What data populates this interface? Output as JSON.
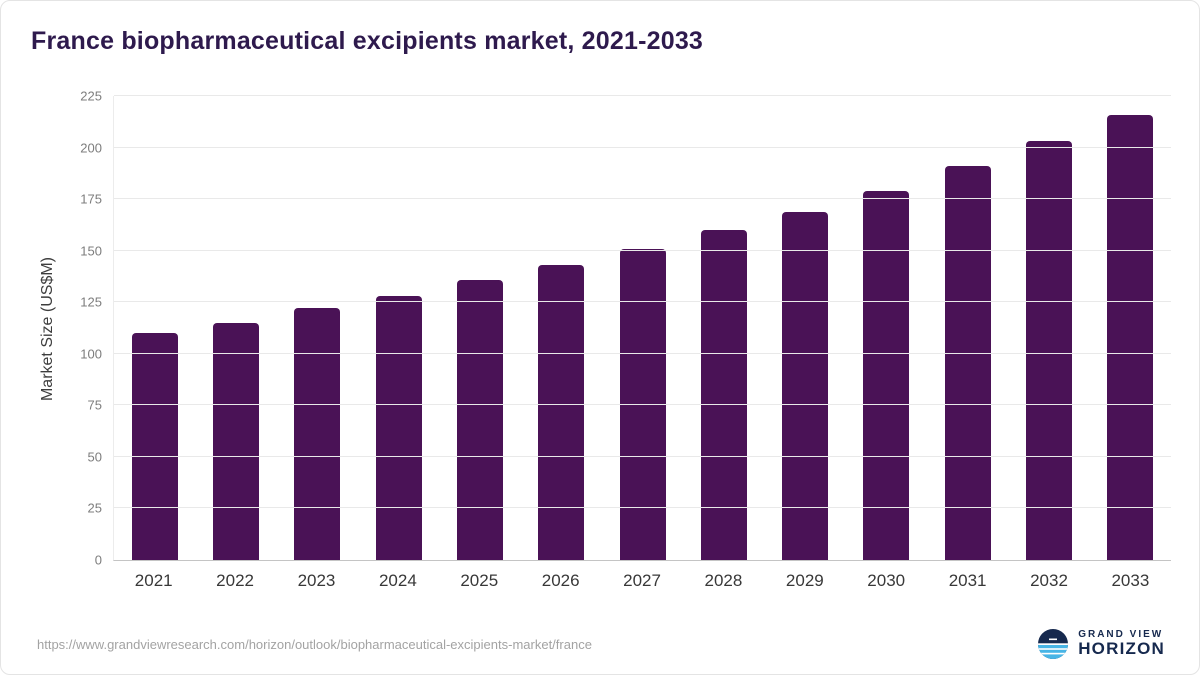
{
  "header": {
    "title": "France biopharmaceutical excipients market, 2021-2033"
  },
  "chart_data": {
    "type": "bar",
    "title": "France biopharmaceutical excipients market, 2021-2033",
    "categories": [
      "2021",
      "2022",
      "2023",
      "2024",
      "2025",
      "2026",
      "2027",
      "2028",
      "2029",
      "2030",
      "2031",
      "2032",
      "2033"
    ],
    "values": [
      110,
      115,
      122,
      128,
      136,
      143,
      151,
      160,
      169,
      179,
      191,
      203,
      216
    ],
    "xlabel": "",
    "ylabel": "Market Size (US$M)",
    "ylim": [
      0,
      225
    ],
    "ytick_step": 25,
    "grid": true,
    "legend": "none",
    "bar_color": "#4a1256"
  },
  "footer": {
    "source_url": "https://www.grandviewresearch.com/horizon/outlook/biopharmaceutical-excipients-market/france",
    "brand_line1": "GRAND VIEW",
    "brand_line2": "HORIZON"
  },
  "colors": {
    "bar": "#4a1256",
    "title": "#2e1a4d",
    "brand_navy": "#16294e",
    "brand_blue": "#47b5e6",
    "gridline": "#e9e9e9"
  }
}
